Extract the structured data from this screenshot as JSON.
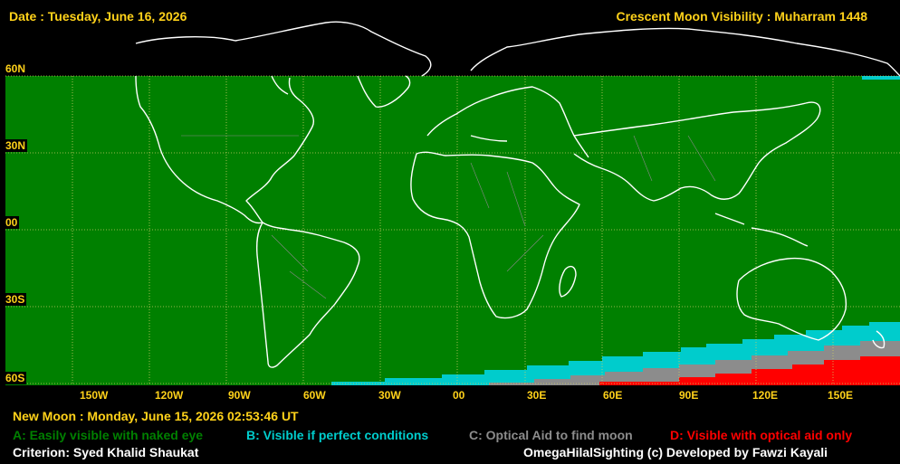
{
  "header": {
    "date": "Date : Tuesday, June 16, 2026",
    "title": "Crescent Moon Visibility : Muharram  1448"
  },
  "map": {
    "lat_labels": [
      "60N",
      "30N",
      "00",
      "30S",
      "60S"
    ],
    "lon_labels": [
      "150W",
      "120W",
      "90W",
      "60W",
      "30W",
      "00",
      "30E",
      "60E",
      "90E",
      "120E",
      "150E"
    ]
  },
  "footer": {
    "new_moon": "New Moon : Monday, June 15, 2026  02:53:46  UT",
    "legend": [
      {
        "text": "A: Easily visible with naked eye",
        "color": "#008000"
      },
      {
        "text": "B: Visible if perfect conditions",
        "color": "#00cccc"
      },
      {
        "text": "C: Optical Aid to find moon",
        "color": "#8c8c8c"
      },
      {
        "text": "D: Visible with optical aid only",
        "color": "#ff0000"
      }
    ],
    "criterion": "Criterion: Syed Khalid Shaukat",
    "credit": "OmegaHilalSighting  (c)  Developed by Fawzi Kayali"
  },
  "colors": {
    "zone_a": "#008000",
    "zone_b": "#00cccc",
    "zone_c": "#8c8c8c",
    "zone_d": "#ff0000",
    "label": "#ffd21a",
    "grid": "#cccc66"
  }
}
